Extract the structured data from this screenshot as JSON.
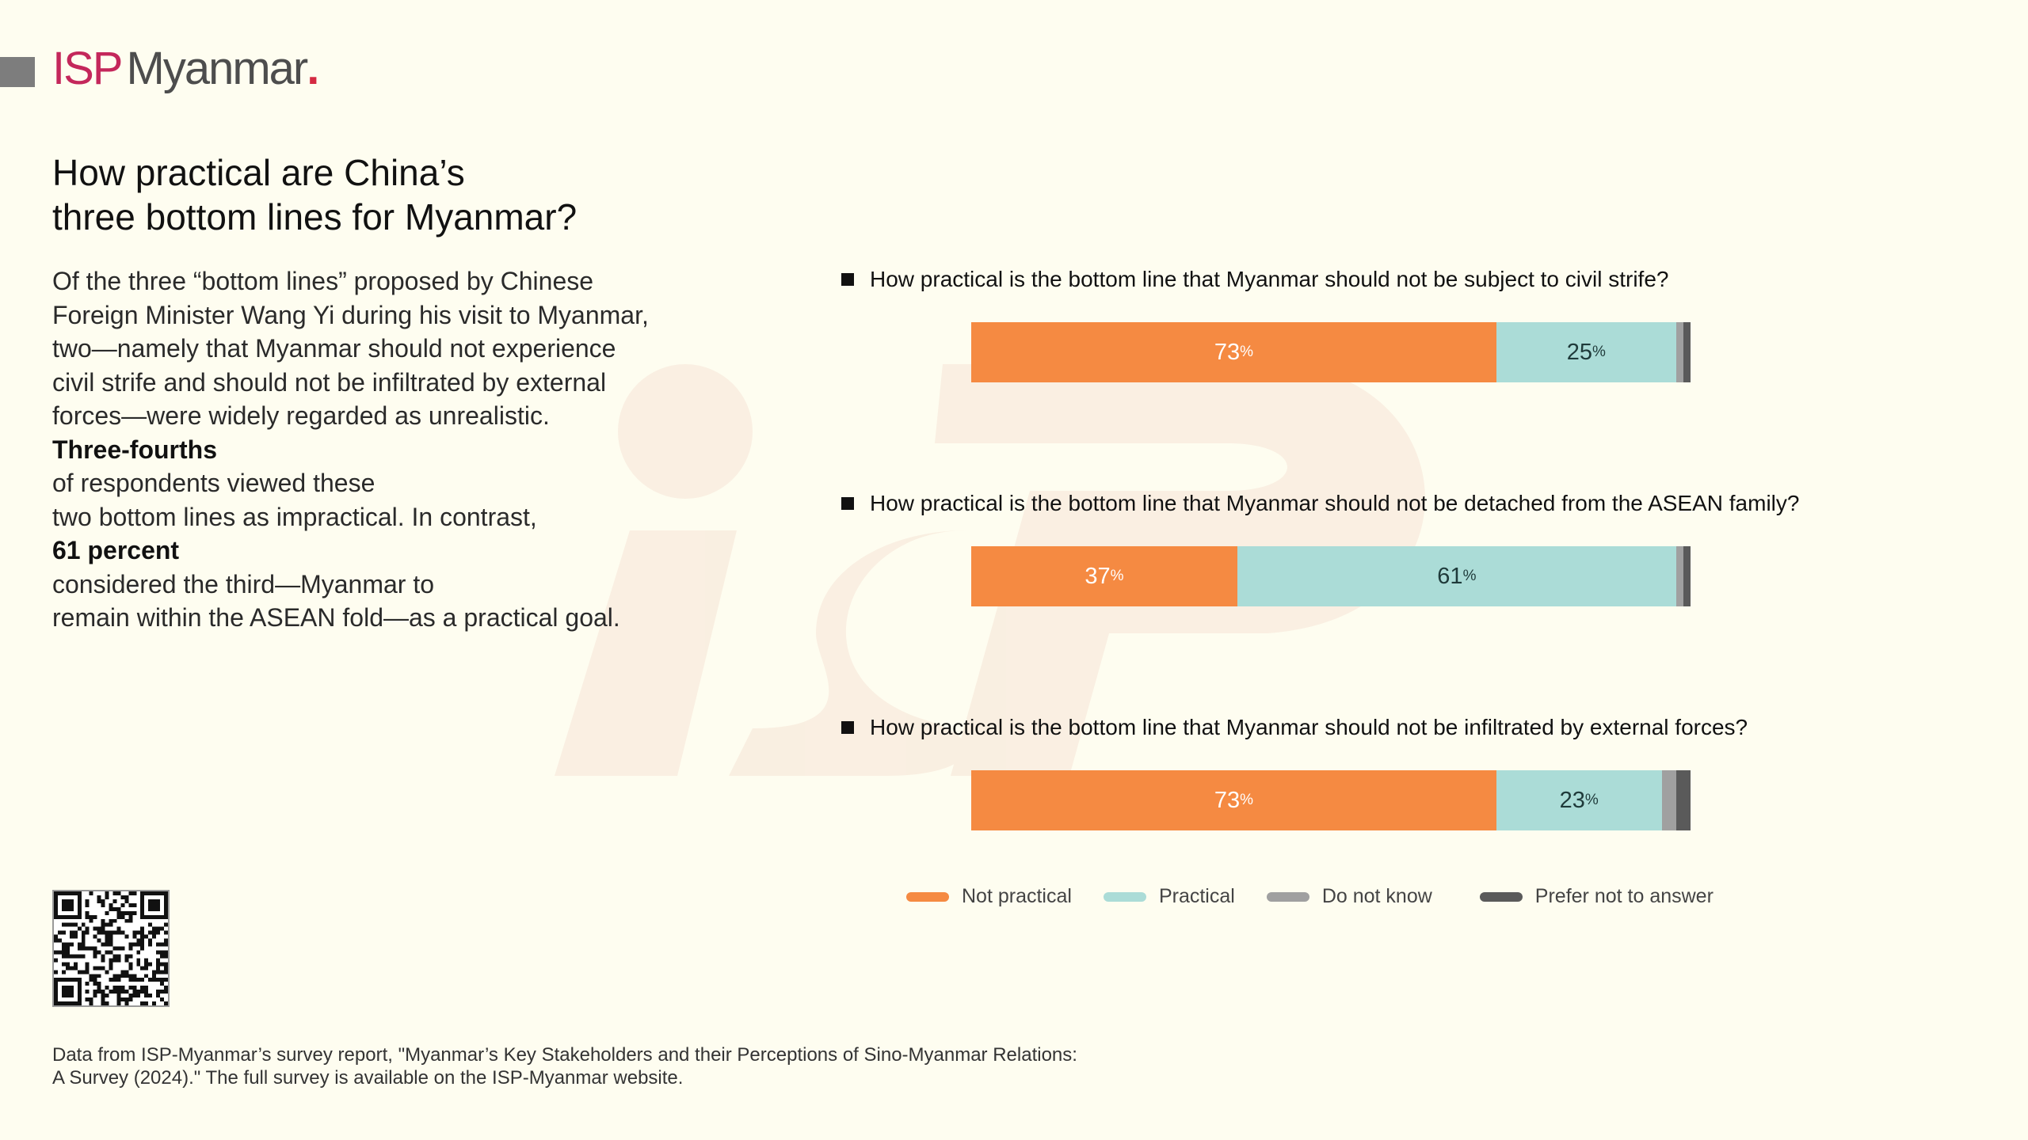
{
  "brand": {
    "prefix": "ISP",
    "name": "Myanmar",
    "dot": "."
  },
  "header": {
    "title_lines": [
      "How practical are China’s",
      "three bottom lines for Myanmar?"
    ]
  },
  "intro": {
    "lines": [
      [
        "Of the three “bottom lines” proposed by Chinese"
      ],
      [
        "Foreign Minister Wang Yi during his visit to Myanmar,"
      ],
      [
        "two—namely that Myanmar should not experience"
      ],
      [
        "civil strife and should not be infiltrated by external"
      ],
      [
        "forces—were widely regarded as unrealistic."
      ],
      [
        "Three-fourths",
        " of respondents viewed these"
      ],
      [
        "two bottom lines as impractical. In contrast,"
      ],
      [
        "61 percent",
        " considered the third—Myanmar to"
      ],
      [
        "remain within the ASEAN fold—as a practical goal."
      ]
    ]
  },
  "chart_data": {
    "type": "bar",
    "orientation": "horizontal",
    "stacked": true,
    "categories": [
      "How practical is the bottom line that Myanmar should not be subject to civil strife?",
      "How practical is the bottom line that Myanmar should not be detached from the ASEAN family?",
      "How practical is the bottom line that Myanmar should not be infiltrated by external forces?"
    ],
    "series": [
      {
        "name": "Not practical",
        "color": "#f58a42",
        "values": [
          73,
          37,
          73
        ],
        "labels": [
          "73",
          "37",
          "73"
        ]
      },
      {
        "name": "Practical",
        "color": "#abdcd7",
        "values": [
          25,
          61,
          23
        ],
        "labels": [
          "25",
          "61",
          "23"
        ]
      },
      {
        "name": "Do not know",
        "color": "#a0a0a0",
        "values": [
          1,
          1,
          2
        ]
      },
      {
        "name": "Prefer not to answer",
        "color": "#5a5a5a",
        "values": [
          1,
          1,
          2
        ]
      }
    ],
    "unit_symbol": "%",
    "legend_position": "bottom",
    "grid": false
  },
  "footer": {
    "lines": [
      "Data from ISP-Myanmar’s survey report, \"Myanmar’s Key Stakeholders and their Perceptions of Sino-Myanmar Relations:",
      "A Survey (2024).\" The full survey is available on the ISP-Myanmar website."
    ]
  }
}
